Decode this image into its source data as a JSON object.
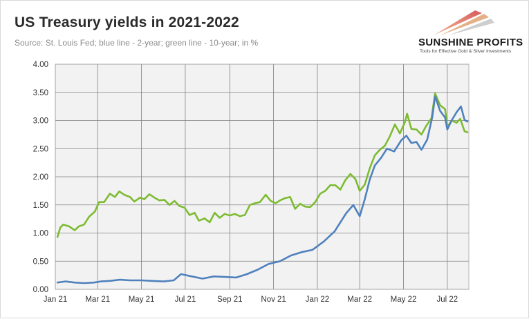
{
  "title": "US Treasury yields in 2021-2022",
  "subtitle": "Source: St. Louis Fed; blue line - 2-year; green line - 10-year; in %",
  "logo": {
    "name": "SUNSHINE PROFITS",
    "tagline": "Tools for Effective Gold & Silver Investments"
  },
  "colors": {
    "two_year": "#4f81bd",
    "ten_year": "#7dbb31",
    "plot_background": "#f2f2f2",
    "gridline": "#7f7f7f"
  },
  "chart_data": {
    "type": "line",
    "title": "US Treasury yields in 2021-2022",
    "xlabel": "",
    "ylabel": "",
    "x_range": [
      "2021-01-01",
      "2022-07-31"
    ],
    "ylim": [
      0,
      4
    ],
    "yticks": [
      "0.00",
      "0.50",
      "1.00",
      "1.50",
      "2.00",
      "2.50",
      "3.00",
      "3.50",
      "4.00"
    ],
    "xticks": [
      {
        "date": "2021-01-01",
        "label": "Jan 21"
      },
      {
        "date": "2021-03-01",
        "label": "Mar 21"
      },
      {
        "date": "2021-05-01",
        "label": "May 21"
      },
      {
        "date": "2021-07-01",
        "label": "Jul 21"
      },
      {
        "date": "2021-09-01",
        "label": "Sep 21"
      },
      {
        "date": "2021-11-01",
        "label": "Nov 21"
      },
      {
        "date": "2022-01-01",
        "label": "Jan 22"
      },
      {
        "date": "2022-03-01",
        "label": "Mar 22"
      },
      {
        "date": "2022-05-01",
        "label": "May 22"
      },
      {
        "date": "2022-07-01",
        "label": "Jul 22"
      }
    ],
    "grid": true,
    "legend": "none",
    "series": [
      {
        "color": "#7dbb31",
        "points": [
          [
            "2021-01-04",
            0.93
          ],
          [
            "2021-01-08",
            1.1
          ],
          [
            "2021-01-12",
            1.15
          ],
          [
            "2021-01-20",
            1.12
          ],
          [
            "2021-01-28",
            1.05
          ],
          [
            "2021-02-03",
            1.12
          ],
          [
            "2021-02-10",
            1.15
          ],
          [
            "2021-02-17",
            1.29
          ],
          [
            "2021-02-25",
            1.38
          ],
          [
            "2021-03-03",
            1.55
          ],
          [
            "2021-03-10",
            1.55
          ],
          [
            "2021-03-18",
            1.7
          ],
          [
            "2021-03-25",
            1.64
          ],
          [
            "2021-03-31",
            1.74
          ],
          [
            "2021-04-07",
            1.68
          ],
          [
            "2021-04-15",
            1.64
          ],
          [
            "2021-04-21",
            1.56
          ],
          [
            "2021-04-29",
            1.63
          ],
          [
            "2021-05-05",
            1.6
          ],
          [
            "2021-05-12",
            1.69
          ],
          [
            "2021-05-19",
            1.63
          ],
          [
            "2021-05-26",
            1.58
          ],
          [
            "2021-06-02",
            1.59
          ],
          [
            "2021-06-09",
            1.5
          ],
          [
            "2021-06-16",
            1.57
          ],
          [
            "2021-06-23",
            1.48
          ],
          [
            "2021-06-30",
            1.45
          ],
          [
            "2021-07-07",
            1.32
          ],
          [
            "2021-07-14",
            1.36
          ],
          [
            "2021-07-20",
            1.22
          ],
          [
            "2021-07-28",
            1.26
          ],
          [
            "2021-08-04",
            1.19
          ],
          [
            "2021-08-11",
            1.36
          ],
          [
            "2021-08-18",
            1.27
          ],
          [
            "2021-08-25",
            1.34
          ],
          [
            "2021-09-01",
            1.31
          ],
          [
            "2021-09-08",
            1.34
          ],
          [
            "2021-09-15",
            1.3
          ],
          [
            "2021-09-22",
            1.32
          ],
          [
            "2021-09-29",
            1.5
          ],
          [
            "2021-10-06",
            1.53
          ],
          [
            "2021-10-13",
            1.55
          ],
          [
            "2021-10-21",
            1.68
          ],
          [
            "2021-10-28",
            1.57
          ],
          [
            "2021-11-04",
            1.53
          ],
          [
            "2021-11-10",
            1.58
          ],
          [
            "2021-11-17",
            1.62
          ],
          [
            "2021-11-24",
            1.64
          ],
          [
            "2021-12-01",
            1.43
          ],
          [
            "2021-12-08",
            1.52
          ],
          [
            "2021-12-15",
            1.47
          ],
          [
            "2021-12-22",
            1.46
          ],
          [
            "2021-12-29",
            1.55
          ],
          [
            "2022-01-05",
            1.7
          ],
          [
            "2022-01-12",
            1.75
          ],
          [
            "2022-01-19",
            1.85
          ],
          [
            "2022-01-26",
            1.85
          ],
          [
            "2022-02-02",
            1.77
          ],
          [
            "2022-02-09",
            1.94
          ],
          [
            "2022-02-16",
            2.05
          ],
          [
            "2022-02-23",
            1.96
          ],
          [
            "2022-03-01",
            1.75
          ],
          [
            "2022-03-08",
            1.86
          ],
          [
            "2022-03-15",
            2.15
          ],
          [
            "2022-03-22",
            2.38
          ],
          [
            "2022-03-29",
            2.48
          ],
          [
            "2022-04-05",
            2.55
          ],
          [
            "2022-04-12",
            2.72
          ],
          [
            "2022-04-19",
            2.93
          ],
          [
            "2022-04-26",
            2.77
          ],
          [
            "2022-05-03",
            2.97
          ],
          [
            "2022-05-06",
            3.12
          ],
          [
            "2022-05-12",
            2.85
          ],
          [
            "2022-05-19",
            2.84
          ],
          [
            "2022-05-26",
            2.75
          ],
          [
            "2022-06-02",
            2.91
          ],
          [
            "2022-06-09",
            3.04
          ],
          [
            "2022-06-14",
            3.48
          ],
          [
            "2022-06-21",
            3.27
          ],
          [
            "2022-06-28",
            3.2
          ],
          [
            "2022-07-01",
            2.88
          ],
          [
            "2022-07-07",
            3.0
          ],
          [
            "2022-07-14",
            2.96
          ],
          [
            "2022-07-19",
            3.03
          ],
          [
            "2022-07-25",
            2.81
          ],
          [
            "2022-07-29",
            2.79
          ]
        ]
      },
      {
        "color": "#4f81bd",
        "points": [
          [
            "2021-01-04",
            0.12
          ],
          [
            "2021-01-15",
            0.14
          ],
          [
            "2021-01-28",
            0.12
          ],
          [
            "2021-02-10",
            0.11
          ],
          [
            "2021-02-24",
            0.12
          ],
          [
            "2021-03-05",
            0.14
          ],
          [
            "2021-03-18",
            0.15
          ],
          [
            "2021-04-01",
            0.17
          ],
          [
            "2021-04-15",
            0.16
          ],
          [
            "2021-05-01",
            0.16
          ],
          [
            "2021-05-15",
            0.15
          ],
          [
            "2021-06-01",
            0.14
          ],
          [
            "2021-06-15",
            0.16
          ],
          [
            "2021-06-25",
            0.27
          ],
          [
            "2021-07-10",
            0.23
          ],
          [
            "2021-07-25",
            0.19
          ],
          [
            "2021-08-10",
            0.23
          ],
          [
            "2021-08-25",
            0.22
          ],
          [
            "2021-09-10",
            0.21
          ],
          [
            "2021-09-25",
            0.27
          ],
          [
            "2021-10-10",
            0.35
          ],
          [
            "2021-10-25",
            0.45
          ],
          [
            "2021-11-10",
            0.5
          ],
          [
            "2021-11-25",
            0.6
          ],
          [
            "2021-12-10",
            0.66
          ],
          [
            "2021-12-25",
            0.7
          ],
          [
            "2022-01-10",
            0.85
          ],
          [
            "2022-01-25",
            1.03
          ],
          [
            "2022-02-10",
            1.35
          ],
          [
            "2022-02-20",
            1.5
          ],
          [
            "2022-03-01",
            1.3
          ],
          [
            "2022-03-08",
            1.6
          ],
          [
            "2022-03-15",
            1.95
          ],
          [
            "2022-03-22",
            2.2
          ],
          [
            "2022-03-31",
            2.34
          ],
          [
            "2022-04-08",
            2.5
          ],
          [
            "2022-04-18",
            2.45
          ],
          [
            "2022-04-28",
            2.65
          ],
          [
            "2022-05-05",
            2.73
          ],
          [
            "2022-05-12",
            2.6
          ],
          [
            "2022-05-19",
            2.62
          ],
          [
            "2022-05-26",
            2.48
          ],
          [
            "2022-06-03",
            2.66
          ],
          [
            "2022-06-10",
            3.06
          ],
          [
            "2022-06-14",
            3.43
          ],
          [
            "2022-06-21",
            3.17
          ],
          [
            "2022-06-28",
            3.05
          ],
          [
            "2022-07-01",
            2.84
          ],
          [
            "2022-07-07",
            3.0
          ],
          [
            "2022-07-14",
            3.15
          ],
          [
            "2022-07-20",
            3.25
          ],
          [
            "2022-07-25",
            3.01
          ],
          [
            "2022-07-29",
            2.98
          ]
        ]
      }
    ]
  }
}
